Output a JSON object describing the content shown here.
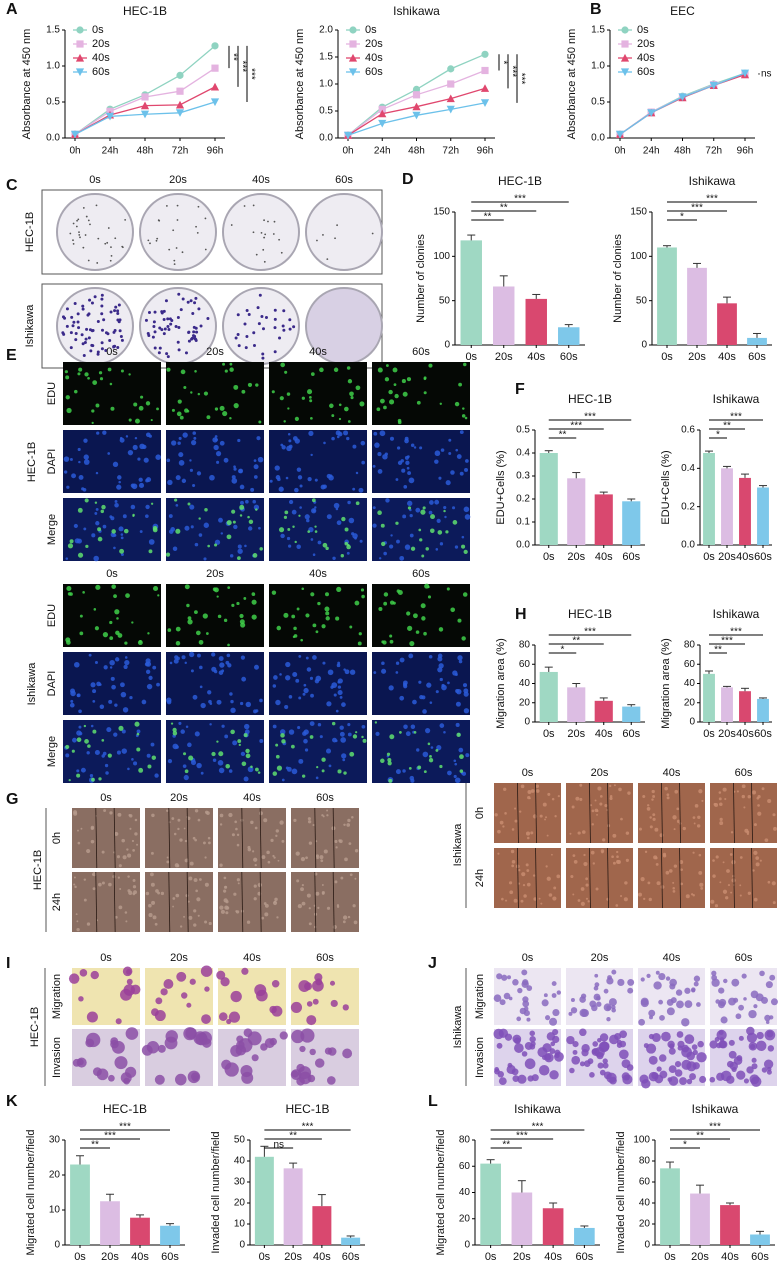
{
  "chart_data": [
    {
      "type": "line",
      "panel": "A",
      "title": "HEC-1B",
      "ylabel": "Absorbance at 450 nm",
      "categories": [
        "0h",
        "24h",
        "48h",
        "72h",
        "96h"
      ],
      "series": [
        {
          "name": "0s",
          "color": "#8fd3c1",
          "marker": "circle",
          "values": [
            0.05,
            0.4,
            0.6,
            0.87,
            1.28
          ]
        },
        {
          "name": "20s",
          "color": "#e4b3e0",
          "marker": "square",
          "values": [
            0.05,
            0.37,
            0.57,
            0.65,
            0.97
          ]
        },
        {
          "name": "40s",
          "color": "#e0476e",
          "marker": "triangle",
          "values": [
            0.05,
            0.32,
            0.45,
            0.46,
            0.71
          ]
        },
        {
          "name": "60s",
          "color": "#6cc1ea",
          "marker": "triangle-down",
          "values": [
            0.05,
            0.3,
            0.33,
            0.35,
            0.5
          ]
        }
      ],
      "ylim": [
        0,
        1.5
      ],
      "yticks": [
        {
          "value": 0,
          "label": "0.0"
        },
        {
          "value": 0.5,
          "label": "0.5"
        },
        {
          "value": 1,
          "label": "1.0"
        },
        {
          "value": 1.5,
          "label": "1.5"
        }
      ],
      "annotations": [
        "**",
        "***",
        "***"
      ]
    },
    {
      "type": "line",
      "title": "Ishikawa",
      "ylabel": "Absorbance at 450 nm",
      "categories": [
        "0h",
        "24h",
        "48h",
        "72h",
        "96h"
      ],
      "series": [
        {
          "name": "0s",
          "color": "#8fd3c1",
          "marker": "circle",
          "values": [
            0.05,
            0.57,
            0.9,
            1.28,
            1.55
          ]
        },
        {
          "name": "20s",
          "color": "#e4b3e0",
          "marker": "square",
          "values": [
            0.05,
            0.53,
            0.8,
            1.0,
            1.25
          ]
        },
        {
          "name": "40s",
          "color": "#e0476e",
          "marker": "triangle",
          "values": [
            0.05,
            0.45,
            0.58,
            0.73,
            0.92
          ]
        },
        {
          "name": "60s",
          "color": "#6cc1ea",
          "marker": "triangle-down",
          "values": [
            0.05,
            0.27,
            0.42,
            0.53,
            0.65
          ]
        }
      ],
      "ylim": [
        0,
        2
      ],
      "yticks": [
        {
          "value": 0,
          "label": "0.0"
        },
        {
          "value": 0.5,
          "label": "0.5"
        },
        {
          "value": 1,
          "label": "1.0"
        },
        {
          "value": 1.5,
          "label": "1.5"
        },
        {
          "value": 2,
          "label": "2.0"
        }
      ],
      "annotations": [
        "*",
        "***",
        "***"
      ]
    },
    {
      "type": "line",
      "panel": "B",
      "title": "EEC",
      "ylabel": "Absorbance at 450 nm",
      "categories": [
        "0h",
        "24h",
        "48h",
        "72h",
        "96h"
      ],
      "series": [
        {
          "name": "0s",
          "color": "#8fd3c1",
          "marker": "circle",
          "values": [
            0.05,
            0.36,
            0.58,
            0.75,
            0.9
          ]
        },
        {
          "name": "20s",
          "color": "#e4b3e0",
          "marker": "square",
          "values": [
            0.05,
            0.36,
            0.57,
            0.74,
            0.88
          ]
        },
        {
          "name": "40s",
          "color": "#e0476e",
          "marker": "triangle",
          "values": [
            0.05,
            0.35,
            0.56,
            0.73,
            0.88
          ]
        },
        {
          "name": "60s",
          "color": "#6cc1ea",
          "marker": "triangle-down",
          "values": [
            0.05,
            0.35,
            0.57,
            0.73,
            0.9
          ]
        }
      ],
      "ylim": [
        0,
        1.5
      ],
      "yticks": [
        {
          "value": 0,
          "label": "0.0"
        },
        {
          "value": 0.5,
          "label": "0.5"
        },
        {
          "value": 1,
          "label": "1.0"
        },
        {
          "value": 1.5,
          "label": "1.5"
        }
      ],
      "annotations": [
        "ns"
      ]
    },
    {
      "type": "bar",
      "panel": "D",
      "title": "HEC-1B",
      "ylabel": "Number of clonies",
      "categories": [
        "0s",
        "20s",
        "40s",
        "60s"
      ],
      "values": [
        118,
        66,
        52,
        20
      ],
      "errors": [
        6,
        12,
        5,
        3
      ],
      "colors": [
        "#9fd8c3",
        "#dcbde3",
        "#d9486f",
        "#7ec8ea"
      ],
      "ylim": [
        0,
        150
      ],
      "yticks": [
        0,
        50,
        100,
        150
      ],
      "annotations": [
        "**",
        "**",
        "***"
      ]
    },
    {
      "type": "bar",
      "title": "Ishikawa",
      "ylabel": "Number of clonies",
      "categories": [
        "0s",
        "20s",
        "40s",
        "60s"
      ],
      "values": [
        110,
        87,
        47,
        8
      ],
      "errors": [
        2,
        5,
        7,
        5
      ],
      "colors": [
        "#9fd8c3",
        "#dcbde3",
        "#d9486f",
        "#7ec8ea"
      ],
      "ylim": [
        0,
        150
      ],
      "yticks": [
        0,
        50,
        100,
        150
      ],
      "annotations": [
        "*",
        "***",
        "***"
      ]
    },
    {
      "type": "bar",
      "panel": "F",
      "title": "HEC-1B",
      "ylabel": "EDU+Cells (%)",
      "categories": [
        "0s",
        "20s",
        "40s",
        "60s"
      ],
      "values": [
        0.4,
        0.29,
        0.22,
        0.19
      ],
      "errors": [
        0.01,
        0.025,
        0.01,
        0.01
      ],
      "colors": [
        "#9fd8c3",
        "#dcbde3",
        "#d9486f",
        "#7ec8ea"
      ],
      "ylim": [
        0,
        0.5
      ],
      "yticks": [
        {
          "value": 0,
          "label": "0.0"
        },
        0.1,
        0.2,
        0.3,
        0.4,
        0.5
      ],
      "annotations": [
        "**",
        "***",
        "***"
      ]
    },
    {
      "type": "bar",
      "title": "Ishikawa",
      "ylabel": "EDU+Cells (%)",
      "categories": [
        "0s",
        "20s",
        "40s",
        "60s"
      ],
      "values": [
        0.48,
        0.4,
        0.35,
        0.3
      ],
      "errors": [
        0.01,
        0.01,
        0.02,
        0.01
      ],
      "colors": [
        "#9fd8c3",
        "#dcbde3",
        "#d9486f",
        "#7ec8ea"
      ],
      "ylim": [
        0,
        0.6
      ],
      "yticks": [
        {
          "value": 0,
          "label": "0.0"
        },
        0.2,
        0.4,
        0.6
      ],
      "annotations": [
        "*",
        "**",
        "***"
      ]
    },
    {
      "type": "bar",
      "panel": "H",
      "title": "HEC-1B",
      "ylabel": "Migration area (%)",
      "categories": [
        "0s",
        "20s",
        "40s",
        "60s"
      ],
      "values": [
        52,
        36,
        22,
        16
      ],
      "errors": [
        5,
        4,
        3,
        2
      ],
      "colors": [
        "#9fd8c3",
        "#dcbde3",
        "#d9486f",
        "#7ec8ea"
      ],
      "ylim": [
        0,
        80
      ],
      "yticks": [
        0,
        20,
        40,
        60,
        80
      ],
      "annotations": [
        "*",
        "**",
        "***"
      ]
    },
    {
      "type": "bar",
      "title": "Ishikawa",
      "ylabel": "Migration area (%)",
      "categories": [
        "0s",
        "20s",
        "40s",
        "60s"
      ],
      "values": [
        50,
        36,
        32,
        24
      ],
      "errors": [
        3,
        1,
        3,
        1
      ],
      "colors": [
        "#9fd8c3",
        "#dcbde3",
        "#d9486f",
        "#7ec8ea"
      ],
      "ylim": [
        0,
        80
      ],
      "yticks": [
        0,
        20,
        40,
        60,
        80
      ],
      "annotations": [
        "**",
        "***",
        "***"
      ]
    },
    {
      "type": "bar",
      "panel": "K",
      "title": "HEC-1B",
      "ylabel": "Migrated cell number/field",
      "categories": [
        "0s",
        "20s",
        "40s",
        "60s"
      ],
      "values": [
        23,
        12.5,
        7.8,
        5.5
      ],
      "errors": [
        2.5,
        2,
        0.8,
        0.6
      ],
      "colors": [
        "#9fd8c3",
        "#dcbde3",
        "#d9486f",
        "#7ec8ea"
      ],
      "ylim": [
        0,
        30
      ],
      "yticks": [
        0,
        10,
        20,
        30
      ],
      "annotations": [
        "**",
        "***",
        "***"
      ]
    },
    {
      "type": "bar",
      "title": "HEC-1B",
      "ylabel": "Invaded cell number/field",
      "categories": [
        "0s",
        "20s",
        "40s",
        "60s"
      ],
      "values": [
        42,
        36.5,
        18.5,
        3.5
      ],
      "errors": [
        5,
        2.5,
        5.5,
        0.8
      ],
      "colors": [
        "#9fd8c3",
        "#dcbde3",
        "#d9486f",
        "#7ec8ea"
      ],
      "ylim": [
        0,
        50
      ],
      "yticks": [
        0,
        10,
        20,
        30,
        40,
        50
      ],
      "annotations": [
        "ns",
        "**",
        "***"
      ]
    },
    {
      "type": "bar",
      "panel": "L",
      "title": "Ishikawa",
      "ylabel": "Migrated cell number/field",
      "categories": [
        "0s",
        "20s",
        "40s",
        "60s"
      ],
      "values": [
        62,
        40,
        28,
        13
      ],
      "errors": [
        3,
        9,
        4,
        1.5
      ],
      "colors": [
        "#9fd8c3",
        "#dcbde3",
        "#d9486f",
        "#7ec8ea"
      ],
      "ylim": [
        0,
        80
      ],
      "yticks": [
        0,
        20,
        40,
        60,
        80
      ],
      "annotations": [
        "**",
        "***",
        "***"
      ]
    },
    {
      "type": "bar",
      "title": "Ishikawa",
      "ylabel": "Invaded cell number/field",
      "categories": [
        "0s",
        "20s",
        "40s",
        "60s"
      ],
      "values": [
        73,
        49,
        38,
        10
      ],
      "errors": [
        6,
        8,
        2,
        3
      ],
      "colors": [
        "#9fd8c3",
        "#dcbde3",
        "#d9486f",
        "#7ec8ea"
      ],
      "ylim": [
        0,
        100
      ],
      "yticks": [
        0,
        20,
        40,
        60,
        80,
        100
      ],
      "annotations": [
        "*",
        "**",
        "***"
      ]
    }
  ],
  "image_panels": {
    "C": {
      "letter": "C",
      "columns": [
        "0s",
        "20s",
        "40s",
        "60s"
      ],
      "rows": [
        "HEC-1B",
        "Ishikawa"
      ]
    },
    "E": {
      "letter": "E",
      "columns": [
        "0s",
        "20s",
        "40s",
        "60s"
      ],
      "groups": [
        {
          "name": "HEC-1B",
          "rows": [
            "EDU",
            "DAPI",
            "Merge"
          ]
        },
        {
          "name": "Ishikawa",
          "rows": [
            "EDU",
            "DAPI",
            "Merge"
          ]
        }
      ]
    },
    "G": {
      "letter": "G",
      "groups": [
        {
          "name": "HEC-1B",
          "columns": [
            "0s",
            "20s",
            "40s",
            "60s"
          ],
          "rows": [
            "0h",
            "24h"
          ]
        },
        {
          "name": "Ishikawa",
          "columns": [
            "0s",
            "20s",
            "40s",
            "60s"
          ],
          "rows": [
            "0h",
            "24h"
          ]
        }
      ]
    },
    "I": {
      "letter": "I",
      "name": "HEC-1B",
      "columns": [
        "0s",
        "20s",
        "40s",
        "60s"
      ],
      "rows": [
        "Migration",
        "Invasion"
      ]
    },
    "J": {
      "letter": "J",
      "name": "Ishikawa",
      "columns": [
        "0s",
        "20s",
        "40s",
        "60s"
      ],
      "rows": [
        "Migration",
        "Invasion"
      ]
    }
  }
}
